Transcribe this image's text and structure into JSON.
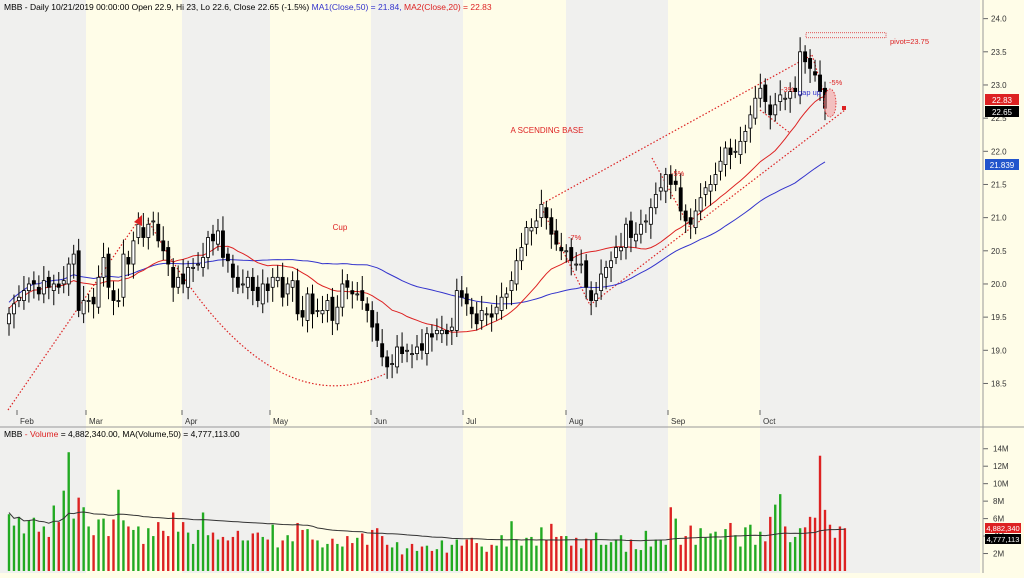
{
  "header": {
    "symbol": "MBB",
    "prefix": " - Daily 10/21/2019 00:00:00 Open 22.9, Hi 23, Lo 22.6, Close 22.65 (-1.5%) ",
    "ma1": "MA1(Close,50) = 21.84,",
    "ma2": " MA2(Close,20) = 22.83"
  },
  "volume_header": {
    "symbol": "MBB",
    "label": " - Volume",
    "text": " = 4,882,340.00, MA(Volume,50) = 4,777,113.00"
  },
  "colors": {
    "background": "#fffde8",
    "month_band": "#f0f0ee",
    "candle": "#000000",
    "ma50": "#3333cc",
    "ma20": "#dd2222",
    "annotation": "#dd2222",
    "volume_up": "#22aa22",
    "volume_down": "#dd2222",
    "volume_ma": "#333333"
  },
  "chart_data": [
    {
      "type": "candlestick",
      "title": "",
      "x_labels": [
        "Feb",
        "Mar",
        "Apr",
        "May",
        "Jun",
        "Jul",
        "Aug",
        "Sep",
        "Oct"
      ],
      "y_ticks": [
        18.5,
        19.0,
        19.5,
        20.0,
        20.5,
        21.0,
        21.5,
        22.0,
        22.5,
        23.0,
        23.5,
        24.0
      ],
      "ylim": [
        18.1,
        24.1
      ],
      "closes": [
        19.55,
        19.7,
        19.8,
        19.9,
        20.0,
        20.0,
        19.85,
        20.05,
        19.95,
        20.0,
        19.95,
        20.05,
        20.3,
        20.45,
        19.6,
        19.75,
        19.75,
        19.7,
        20.1,
        20.4,
        19.95,
        19.75,
        19.75,
        20.45,
        20.3,
        20.65,
        20.9,
        20.7,
        20.9,
        20.95,
        20.65,
        20.5,
        20.3,
        19.95,
        20.1,
        20.0,
        20.25,
        20.25,
        20.3,
        20.4,
        20.7,
        20.65,
        20.8,
        20.4,
        20.35,
        20.1,
        19.95,
        20.0,
        20.1,
        19.9,
        19.75,
        20.0,
        19.9,
        20.1,
        20.1,
        19.8,
        20.0,
        20.05,
        19.55,
        19.5,
        19.85,
        19.55,
        19.6,
        19.6,
        19.75,
        19.45,
        19.65,
        20.0,
        19.95,
        19.85,
        19.85,
        19.75,
        19.6,
        19.35,
        19.15,
        18.9,
        18.75,
        18.8,
        19.05,
        18.95,
        19.0,
        18.95,
        19.05,
        19.0,
        19.25,
        19.2,
        19.3,
        19.3,
        19.25,
        19.35,
        19.9,
        19.8,
        19.7,
        19.55,
        19.4,
        19.6,
        19.55,
        19.5,
        19.65,
        19.8,
        19.85,
        20.05,
        20.35,
        20.55,
        20.85,
        20.85,
        20.95,
        21.2,
        21.0,
        20.75,
        20.6,
        20.5,
        20.5,
        20.35,
        20.3,
        20.3,
        19.95,
        19.75,
        19.85,
        20.15,
        20.25,
        20.35,
        20.55,
        20.55,
        20.9,
        20.7,
        20.75,
        20.9,
        20.95,
        21.15,
        21.35,
        21.45,
        21.65,
        21.5,
        21.5,
        21.1,
        20.95,
        20.9,
        21.1,
        21.3,
        21.45,
        21.5,
        21.65,
        21.85,
        22.05,
        21.95,
        22.0,
        22.15,
        22.3,
        22.55,
        22.8,
        22.95,
        22.75,
        22.55,
        22.7,
        22.85,
        22.8,
        22.9,
        22.9,
        23.5,
        23.35,
        23.25,
        23.15,
        22.9,
        22.65
      ],
      "ma50_anchor": 21.84,
      "ma20_anchor": 22.83
    },
    {
      "type": "bar",
      "title": "",
      "y_ticks": [
        "2M",
        "4M",
        "6M",
        "8M",
        "10M",
        "12M",
        "14M"
      ],
      "ylim": [
        0,
        15
      ],
      "volumes_m": [
        6.5,
        5.2,
        6.2,
        4.3,
        5.8,
        6.1,
        4.5,
        5.1,
        3.9,
        7.5,
        5.6,
        9.2,
        13.6,
        6.0,
        8.4,
        7.3,
        5.1,
        4.1,
        5.9,
        6.0,
        4.0,
        5.9,
        9.3,
        5.8,
        5.1,
        4.7,
        5.1,
        3.1,
        4.9,
        4.0,
        5.6,
        4.6,
        4.0,
        6.7,
        4.5,
        5.6,
        4.4,
        3.1,
        4.7,
        6.7,
        4.1,
        4.4,
        3.6,
        3.9,
        3.5,
        3.9,
        4.6,
        3.5,
        3.5,
        4.3,
        4.4,
        3.9,
        3.6,
        5.3,
        2.7,
        3.5,
        4.1,
        3.4,
        5.5,
        4.7,
        4.8,
        3.6,
        3.5,
        2.7,
        3.1,
        3.7,
        3.1,
        2.8,
        4.0,
        3.2,
        3.8,
        4.3,
        3.0,
        4.7,
        4.9,
        4.0,
        3.0,
        2.7,
        3.3,
        1.9,
        2.6,
        3.1,
        2.3,
        2.8,
        2.9,
        2.3,
        2.5,
        3.5,
        2.1,
        3.0,
        3.6,
        2.9,
        3.6,
        3.8,
        3.2,
        2.8,
        2.2,
        3.0,
        2.9,
        4.1,
        2.8,
        5.7,
        3.6,
        2.9,
        3.8,
        3.9,
        2.9,
        5.0,
        3.6,
        5.4,
        3.9,
        4.0,
        4.0,
        2.9,
        3.8,
        2.6,
        3.7,
        3.6,
        4.4,
        3.0,
        3.0,
        3.3,
        3.5,
        4.1,
        2.2,
        3.6,
        2.5,
        2.4,
        4.6,
        2.8,
        3.6,
        3.6,
        3.0,
        7.3,
        6.0,
        3.0,
        4.0,
        5.2,
        3.0,
        4.9,
        3.8,
        4.3,
        4.5,
        3.6,
        4.8,
        5.5,
        4.1,
        2.8,
        5.0,
        5.3,
        3.0,
        4.5,
        3.4,
        6.2,
        7.6,
        8.8,
        5.1,
        3.3,
        3.9,
        4.9,
        5.0,
        6.2,
        6.1,
        13.2,
        7.0,
        5.3,
        3.8,
        5.1,
        4.9
      ],
      "vol_ma_anchor": 4.777
    }
  ],
  "price_labels": {
    "ma20_value": "22.83",
    "close_value": "22.65",
    "ma50_value": "21.839"
  },
  "volume_labels": {
    "volume_value": "4,882,340",
    "ma_value": "4,777,113"
  },
  "annotations": {
    "cup": "Cup",
    "ascending_base": "A SCENDING BASE",
    "pivot": "pivot=23.75",
    "gap_up": "gap up",
    "pullbacks": [
      "-7%",
      "-5%",
      "-3%",
      "-5%"
    ]
  }
}
